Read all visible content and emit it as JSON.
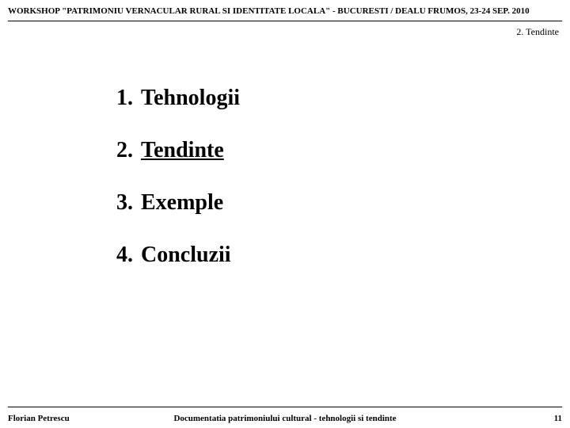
{
  "header": {
    "title": "WORKSHOP \"PATRIMONIU VERNACULAR RURAL SI IDENTITATE LOCALA\" - BUCURESTI / DEALU FRUMOS, 23-24 SEP. 2010"
  },
  "section": {
    "label": "2. Tendinte"
  },
  "list": {
    "items": [
      {
        "num": "1.",
        "text": "Tehnologii",
        "underlined": false
      },
      {
        "num": "2.",
        "text": "Tendinte",
        "underlined": true
      },
      {
        "num": "3.",
        "text": "Exemple",
        "underlined": false
      },
      {
        "num": "4.",
        "text": "Concluzii",
        "underlined": false
      }
    ]
  },
  "footer": {
    "author": "Florian Petrescu",
    "title": "Documentatia patrimoniului cultural - tehnologii si tendinte",
    "page": "11"
  },
  "colors": {
    "background": "#ffffff",
    "text": "#000000",
    "rule": "#000000"
  },
  "typography": {
    "header_fontsize": 11,
    "section_fontsize": 12,
    "list_fontsize": 28,
    "footer_fontsize": 11,
    "font_family": "Times New Roman"
  }
}
